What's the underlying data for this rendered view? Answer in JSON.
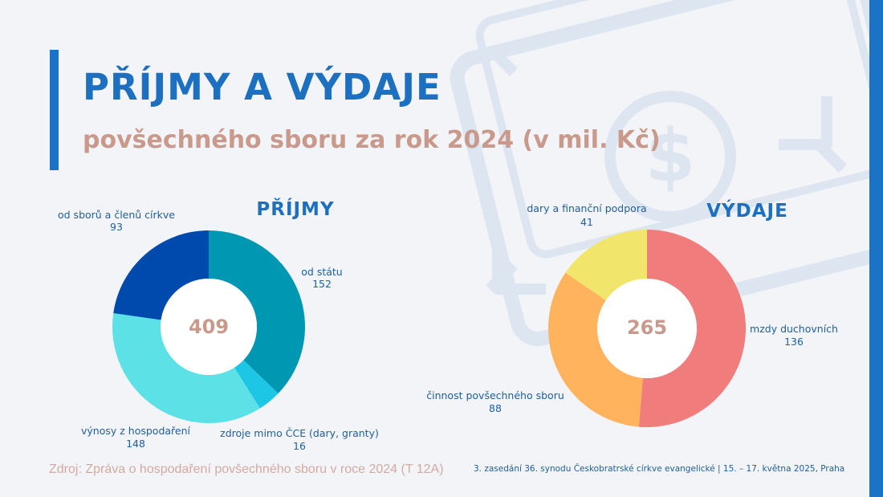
{
  "header": {
    "title": "PŘÍJMY A VÝDAJE",
    "subtitle": "povšechného sboru za rok 2024 (v mil. Kč)"
  },
  "background_icon": "money-bill-icon",
  "colors": {
    "accent": "#1a73c7",
    "title": "#1d6fbf",
    "subtitle": "#c99a8c",
    "label": "#1f5fa0"
  },
  "chart_data": [
    {
      "type": "pie",
      "title": "PŘÍJMY",
      "total": "409",
      "donut": true,
      "slices": [
        {
          "name": "od státu",
          "value": 152,
          "color": "#0097b2"
        },
        {
          "name": "zdroje mimo ČCE (dary, granty)",
          "value": 16,
          "color": "#1cc6e4"
        },
        {
          "name": "výnosy z hospodaření",
          "value": 148,
          "color": "#5ce1e6"
        },
        {
          "name": "od sborů a členů církve",
          "value": 93,
          "color": "#004aad"
        }
      ]
    },
    {
      "type": "pie",
      "title": "VÝDAJE",
      "total": "265",
      "donut": true,
      "slices": [
        {
          "name": "mzdy duchovních",
          "value": 136,
          "color": "#f07c7c"
        },
        {
          "name": "činnost povšechného sboru",
          "value": 88,
          "color": "#ffb35c"
        },
        {
          "name": "dary a finanční podpora",
          "value": 41,
          "color": "#f2e56b"
        }
      ]
    }
  ],
  "footer": {
    "source": "Zdroj: Zpráva o hospodaření povšechného sboru v roce 2024 (T 12A)",
    "event": "3. zasedání 36. synodu Českobratrské církve evangelické | 15. – 17. května 2025, Praha"
  }
}
